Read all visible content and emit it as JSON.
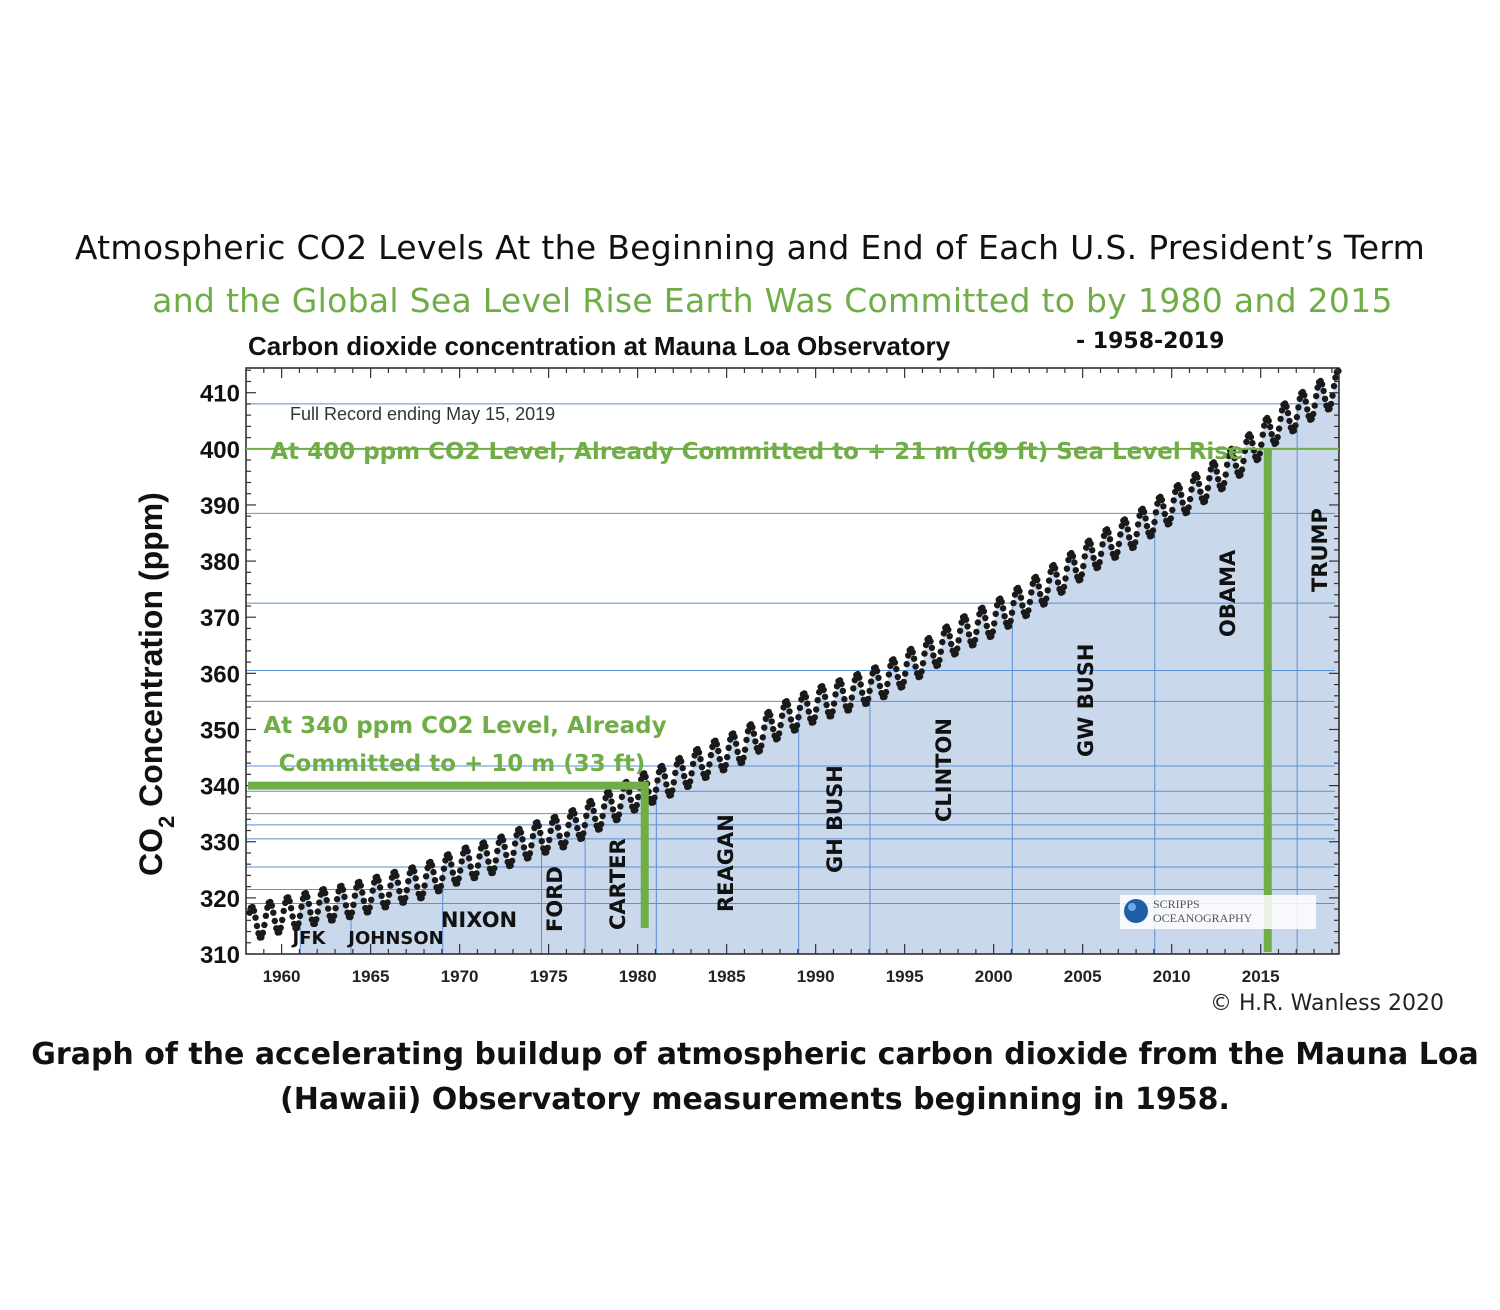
{
  "header": {
    "title_line1": "Atmospheric CO2 Levels At the Beginning and End of Each U.S. President’s Term",
    "title_line2": "and the Global Sea Level Rise Earth Was Committed to by 1980 and 2015"
  },
  "caption": {
    "line1": "Graph of the accelerating buildup of atmospheric carbon dioxide from the Mauna Loa",
    "line2": "(Hawaii) Observatory measurements beginning in 1958."
  },
  "chart_data": {
    "type": "line",
    "title": "Carbon dioxide concentration at Mauna Loa Observatory",
    "title_suffix": "- 1958-2019",
    "subtitle": "Full Record ending May 15, 2019",
    "ylabel": "CO",
    "ylabel_sub": "2",
    "ylabel_rest": " Concentration (ppm)",
    "xlabel": "",
    "xlim": [
      1958,
      2019.4
    ],
    "ylim": [
      310,
      415
    ],
    "x_ticks": [
      "1960",
      "1965",
      "1970",
      "1975",
      "1980",
      "1985",
      "1990",
      "1995",
      "2000",
      "2005",
      "2010",
      "2015"
    ],
    "y_ticks": [
      "310",
      "320",
      "330",
      "340",
      "350",
      "360",
      "370",
      "380",
      "390",
      "400",
      "410"
    ],
    "series": [
      {
        "color": "#1a1a1a",
        "x": [
          1958.2,
          1960,
          1962,
          1964,
          1966,
          1968,
          1970,
          1972,
          1974,
          1976,
          1978,
          1980,
          1982,
          1984,
          1986,
          1988,
          1990,
          1992,
          1994,
          1996,
          1998,
          2000,
          2002,
          2004,
          2006,
          2008,
          2010,
          2012,
          2014,
          2016,
          2018,
          2019.4
        ],
        "y": [
          315.3,
          316.9,
          318.4,
          319.6,
          321.4,
          323.0,
          325.7,
          327.5,
          330.2,
          332.1,
          335.4,
          338.8,
          341.4,
          344.6,
          347.2,
          351.6,
          354.4,
          356.5,
          358.9,
          362.6,
          366.7,
          369.7,
          373.5,
          377.7,
          382.1,
          385.6,
          389.9,
          393.8,
          398.6,
          404.4,
          408.5,
          411.0
        ],
        "seasonal_amplitude_ppm": 3
      }
    ],
    "president_terms": [
      {
        "name": "JFK",
        "start": 1961.05,
        "end": 1963.9
      },
      {
        "name": "JOHNSON",
        "start": 1963.9,
        "end": 1969.05
      },
      {
        "name": "NIXON",
        "start": 1969.05,
        "end": 1974.6
      },
      {
        "name": "FORD",
        "start": 1974.6,
        "end": 1977.05
      },
      {
        "name": "CARTER",
        "start": 1977.05,
        "end": 1981.05
      },
      {
        "name": "REAGAN",
        "start": 1981.05,
        "end": 1989.05
      },
      {
        "name": "GH BUSH",
        "start": 1989.05,
        "end": 1993.05
      },
      {
        "name": "CLINTON",
        "start": 1993.05,
        "end": 2001.05
      },
      {
        "name": "GW BUSH",
        "start": 2001.05,
        "end": 2009.05
      },
      {
        "name": "OBAMA",
        "start": 2009.05,
        "end": 2017.05
      },
      {
        "name": "TRUMP",
        "start": 2017.05,
        "end": 2019.4
      }
    ],
    "term_co2_levels_ppm": [
      319,
      321.5,
      325.5,
      330.5,
      333,
      335,
      339,
      343.5,
      355,
      360.5,
      372.5,
      388.5,
      408
    ],
    "annotations": [
      {
        "text_line1": "At 400 ppm CO2 Level, Already Committed to + 21 m (69 ft) Sea Level Rise",
        "co2": 400,
        "year": 2015.4,
        "color": "#70ad47"
      },
      {
        "text_line1": "At 340 ppm CO2 Level, Already",
        "text_line2": "Committed to + 10 m (33 ft)",
        "co2": 340,
        "year": 1980.4,
        "color": "#70ad47"
      }
    ],
    "logo_text_1": "SCRIPPS",
    "logo_text_2": "OCEANOGRAPHY",
    "copyright": "© H.R. Wanless 2020",
    "fill_color": "#c9d8ea",
    "term_line_color": "#5b8fd6",
    "highlight_color": "#70ad47",
    "grid": false,
    "legend": "none"
  }
}
